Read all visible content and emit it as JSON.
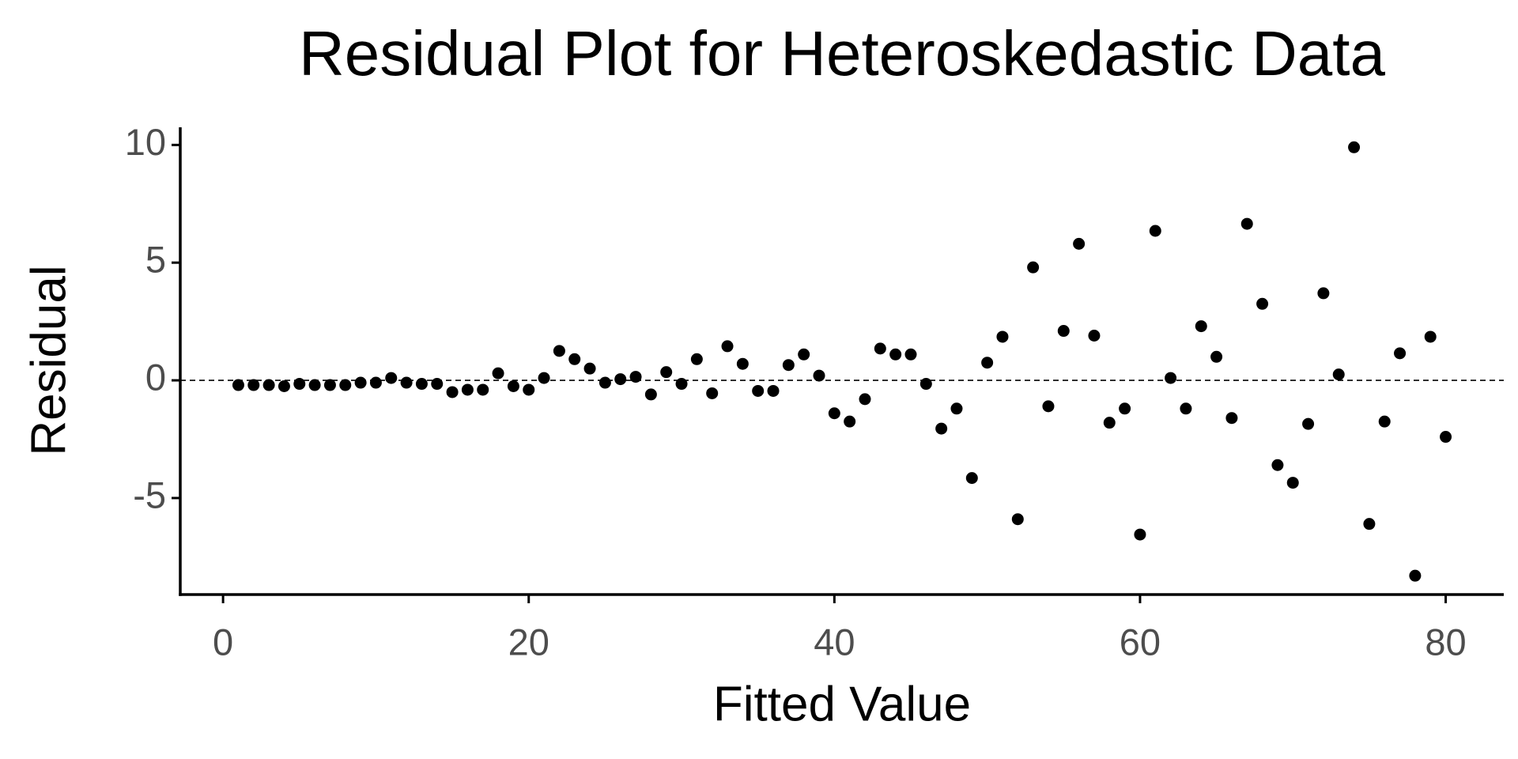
{
  "chart_data": {
    "type": "scatter",
    "title": "Residual Plot for Heteroskedastic Data",
    "x_label": "Fitted Value",
    "y_label": "Residual",
    "color": "#000000",
    "reference_line": {
      "y": 0,
      "style": "dashed"
    },
    "xlim": [
      -2.8,
      83.8
    ],
    "ylim": [
      -9.1,
      10.75
    ],
    "xticks": [
      0,
      20,
      40,
      60,
      80
    ],
    "yticks": [
      -5,
      0,
      5,
      10
    ],
    "grid": false,
    "x": [
      1,
      2,
      3,
      4,
      5,
      6,
      7,
      8,
      9,
      10,
      11,
      12,
      13,
      14,
      15,
      16,
      17,
      18,
      19,
      20,
      21,
      22,
      23,
      24,
      25,
      26,
      27,
      28,
      29,
      30,
      31,
      32,
      33,
      34,
      35,
      36,
      37,
      38,
      39,
      40,
      41,
      42,
      43,
      44,
      45,
      46,
      47,
      48,
      49,
      50,
      51,
      52,
      53,
      54,
      55,
      56,
      57,
      58,
      59,
      60,
      61,
      62,
      63,
      64,
      65,
      66,
      67,
      68,
      69,
      70,
      71,
      72,
      73,
      74,
      75,
      76,
      77,
      78,
      79,
      80
    ],
    "values": [
      -0.2,
      -0.2,
      -0.2,
      -0.25,
      -0.15,
      -0.2,
      -0.2,
      -0.2,
      -0.1,
      -0.1,
      0.1,
      -0.1,
      -0.15,
      -0.15,
      -0.5,
      -0.4,
      -0.4,
      0.3,
      -0.25,
      -0.4,
      0.1,
      1.25,
      0.9,
      0.5,
      -0.1,
      0.05,
      0.15,
      -0.6,
      0.35,
      -0.15,
      0.9,
      -0.55,
      1.45,
      0.7,
      -0.45,
      -0.45,
      0.65,
      1.1,
      0.2,
      -1.4,
      -1.75,
      -0.8,
      1.35,
      1.1,
      1.1,
      -0.15,
      -2.05,
      -1.2,
      -4.15,
      0.75,
      1.85,
      -5.9,
      4.8,
      -1.1,
      2.1,
      5.8,
      1.9,
      -1.8,
      -1.2,
      -6.55,
      6.35,
      0.1,
      -1.2,
      2.3,
      1.0,
      -1.6,
      6.65,
      3.25,
      -3.6,
      -4.35,
      -1.85,
      3.7,
      0.25,
      9.9,
      -6.1,
      -1.75,
      1.15,
      -8.3,
      1.85,
      -2.4
    ]
  }
}
